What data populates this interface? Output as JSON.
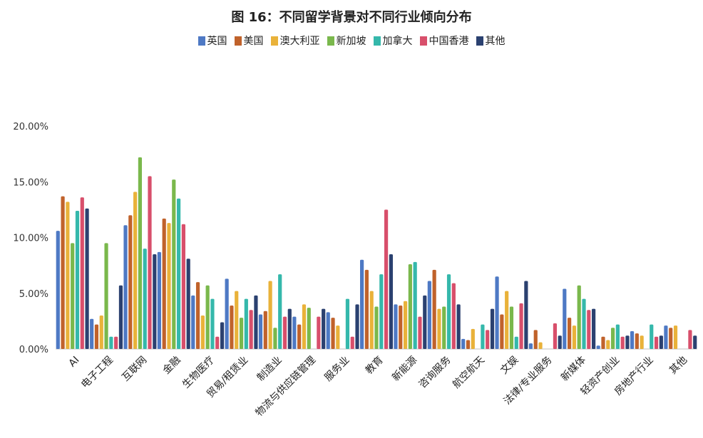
{
  "chart_data": {
    "type": "bar",
    "title": "图 16：不同留学背景对不同行业倾向分布",
    "legend_position": "top",
    "ylim": [
      0,
      20
    ],
    "yticks": [
      "0.00%",
      "5.00%",
      "10.00%",
      "15.00%",
      "20.00%"
    ],
    "categories": [
      "AI",
      "电子工程",
      "互联网",
      "金融",
      "生物医疗",
      "贸易/租赁业",
      "制造业",
      "物流与供应链管理",
      "服务业",
      "教育",
      "新能源",
      "咨询服务",
      "航空航天",
      "文娱",
      "法律/专业服务",
      "新媒体",
      "轻资产创业",
      "房地产行业",
      "其他"
    ],
    "series": [
      {
        "name": "英国",
        "color": "#4e79c4",
        "values": [
          10.6,
          2.7,
          11.1,
          8.7,
          4.8,
          6.3,
          3.1,
          2.9,
          3.3,
          8.0,
          4.0,
          6.1,
          0.9,
          6.5,
          0.5,
          5.4,
          0.3,
          1.6,
          2.1
        ]
      },
      {
        "name": "美国",
        "color": "#c0622b",
        "values": [
          13.7,
          2.2,
          12.0,
          11.7,
          6.0,
          3.9,
          3.4,
          2.2,
          2.8,
          7.1,
          3.9,
          7.1,
          0.8,
          3.1,
          1.7,
          2.8,
          1.1,
          1.4,
          1.9
        ]
      },
      {
        "name": "澳大利亚",
        "color": "#e9b23a",
        "values": [
          13.2,
          3.0,
          14.1,
          11.3,
          3.0,
          5.2,
          6.1,
          4.0,
          2.1,
          5.2,
          4.3,
          3.6,
          1.8,
          5.2,
          0.6,
          2.1,
          0.8,
          1.2,
          2.1
        ]
      },
      {
        "name": "新加坡",
        "color": "#7ab84c",
        "values": [
          9.5,
          9.5,
          17.2,
          15.2,
          5.7,
          2.8,
          1.9,
          3.7,
          0.0,
          3.8,
          7.6,
          3.8,
          0.0,
          3.8,
          0.0,
          5.7,
          1.9,
          0.0,
          0.0
        ]
      },
      {
        "name": "加拿大",
        "color": "#35b8ab",
        "values": [
          12.4,
          1.1,
          9.0,
          13.5,
          4.5,
          4.5,
          6.7,
          0.0,
          4.5,
          6.7,
          7.8,
          6.7,
          2.2,
          1.1,
          0.0,
          4.5,
          2.2,
          2.2,
          0.0
        ]
      },
      {
        "name": "中国香港",
        "color": "#d84f6b",
        "values": [
          13.6,
          1.1,
          15.5,
          11.2,
          1.1,
          3.5,
          2.9,
          2.9,
          1.1,
          12.5,
          2.9,
          5.9,
          1.7,
          4.1,
          2.3,
          3.5,
          1.1,
          1.1,
          1.7
        ]
      },
      {
        "name": "其他",
        "color": "#2b4170",
        "values": [
          12.6,
          5.7,
          8.5,
          8.1,
          2.4,
          4.8,
          3.6,
          3.6,
          4.0,
          8.5,
          4.8,
          4.0,
          3.6,
          6.1,
          1.2,
          3.6,
          1.2,
          1.2,
          1.2
        ]
      }
    ]
  }
}
